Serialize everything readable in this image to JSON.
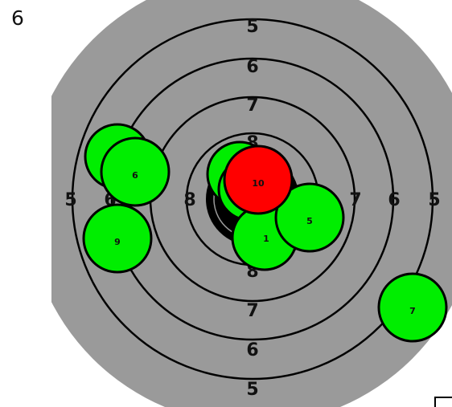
{
  "score_display": "6",
  "target": {
    "colors": {
      "face": "#9a9a9a",
      "ring_line": "#000000",
      "bullseye": "#000000",
      "shot_fill": "#00ee00",
      "highlight_shot_fill": "#ff0000",
      "shot_outline": "#000000"
    },
    "ring_labels": {
      "top": [
        "5",
        "6",
        "7",
        "8"
      ],
      "bottom": [
        "8",
        "7",
        "6",
        "5"
      ],
      "left": [
        "5",
        "6",
        "8"
      ],
      "right": [
        "7",
        "6",
        "5"
      ]
    }
  },
  "shots": [
    {
      "label": "",
      "highlighted": false
    },
    {
      "label": "6",
      "highlighted": false
    },
    {
      "label": "9",
      "highlighted": false
    },
    {
      "label": "",
      "highlighted": false
    },
    {
      "label": "",
      "highlighted": false
    },
    {
      "label": "1",
      "highlighted": false
    },
    {
      "label": "5",
      "highlighted": false
    },
    {
      "label": "10",
      "highlighted": true
    },
    {
      "label": "7",
      "highlighted": false
    }
  ]
}
